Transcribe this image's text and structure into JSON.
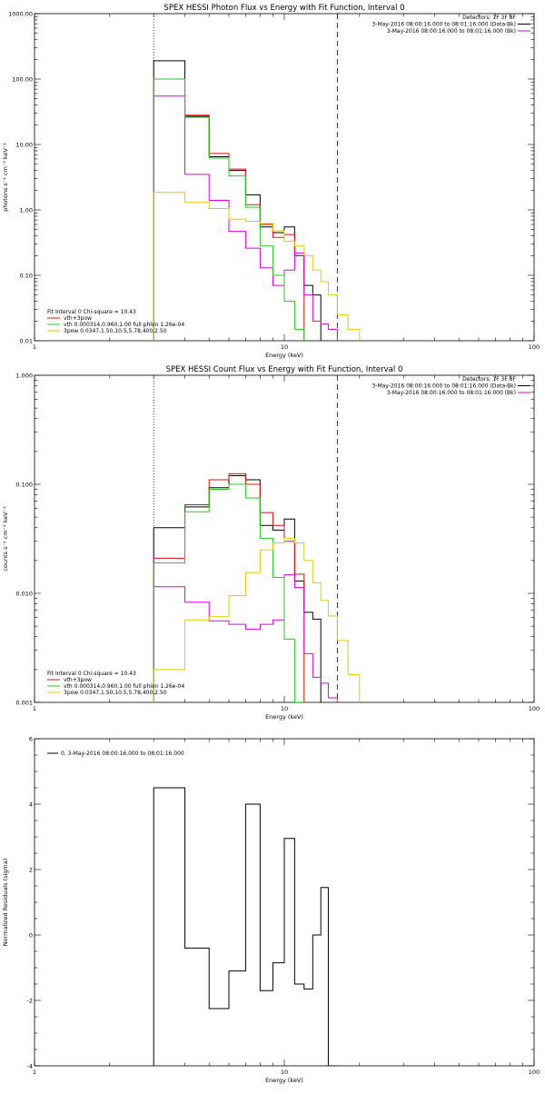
{
  "chart_data": [
    {
      "type": "line",
      "title": "SPEX HESSI Photon Flux vs Energy with Fit Function, Interval 0",
      "xlabel": "Energy (keV)",
      "ylabel": "photons s⁻¹ cm⁻² keV⁻¹",
      "xscale": "log",
      "yscale": "log",
      "xlim": [
        1,
        100
      ],
      "ylim": [
        0.01,
        1000
      ],
      "xticks": [
        {
          "v": 1,
          "label": "1"
        },
        {
          "v": 10,
          "label": "10"
        },
        {
          "v": 100,
          "label": "100"
        }
      ],
      "yticks": [
        {
          "v": 0.01,
          "label": "0.01"
        },
        {
          "v": 0.1,
          "label": "0.10"
        },
        {
          "v": 1,
          "label": "1.00"
        },
        {
          "v": 10,
          "label": "10.00"
        },
        {
          "v": 100,
          "label": "100.00"
        },
        {
          "v": 1000,
          "label": "1000.00"
        }
      ],
      "vlines": [
        {
          "x": 3.0,
          "style": "dotted"
        },
        {
          "x": 16.3,
          "style": "dashed"
        }
      ],
      "legend_right": [
        {
          "text": "Detectors: 1F 3F 8F",
          "color": "",
          "line": false
        },
        {
          "text": "3-May-2016 08:00:16.000 to 08:01:16.000 (Data-Bk)",
          "color": "#000000",
          "line": true
        },
        {
          "text": "3-May-2016 08:00:16.000 to 08:01:16.000 (Bk)",
          "color": "#e000e0",
          "line": true
        }
      ],
      "legend_left": [
        {
          "text": "Fit Interval 0   Chi-square = 10.43",
          "color": "",
          "line": false
        },
        {
          "text": "vth+3pow",
          "color": "#e01010",
          "line": true
        },
        {
          "text": "vth 0.000314,0.960,1.00  full phlon 1.26e-04",
          "color": "#22cc22",
          "line": true
        },
        {
          "text": "3pow 0.0347,1.50,10.5,5.78,400,2.50",
          "color": "#e8c800",
          "line": true
        }
      ],
      "edges": [
        3.0,
        4.0,
        5.0,
        6.0,
        7.0,
        8.0,
        9.0,
        10.0,
        11.0,
        12.0,
        13.0,
        14.0,
        15.0,
        16.3,
        18.0,
        20.0
      ],
      "series": [
        {
          "color": "#000000",
          "values": [
            190,
            27,
            6.5,
            4.0,
            1.7,
            0.55,
            0.45,
            0.55,
            0.2,
            0.07,
            0.05
          ]
        },
        {
          "color": "#e01010",
          "values": [
            100,
            28,
            7.3,
            4.2,
            1.2,
            0.6,
            0.38,
            0.42,
            0.2
          ]
        },
        {
          "color": "#e000e0",
          "values": [
            55,
            3.5,
            1.4,
            0.47,
            0.26,
            0.13,
            0.07,
            0.12,
            0.22,
            0.05,
            0.02,
            0.018,
            0.015
          ]
        },
        {
          "color": "#22cc22",
          "values": [
            100,
            26,
            6.2,
            3.3,
            1.1,
            0.28,
            0.1,
            0.04,
            0.015
          ]
        },
        {
          "color": "#e8c800",
          "values": [
            1.85,
            1.3,
            1.05,
            0.72,
            0.67,
            0.62,
            0.48,
            0.33,
            0.28,
            0.2,
            0.12,
            0.08,
            0.05,
            0.025,
            0.015
          ]
        }
      ]
    },
    {
      "type": "line",
      "title": "SPEX HESSI Count Flux vs Energy with Fit Function, Interval 0",
      "xlabel": "Energy (keV)",
      "ylabel": "counts s⁻¹ cm⁻² keV⁻¹",
      "xscale": "log",
      "yscale": "log",
      "xlim": [
        1,
        100
      ],
      "ylim": [
        0.001,
        1
      ],
      "xticks": [
        {
          "v": 1,
          "label": "1"
        },
        {
          "v": 10,
          "label": "10"
        },
        {
          "v": 100,
          "label": "100"
        }
      ],
      "yticks": [
        {
          "v": 0.001,
          "label": "0.001"
        },
        {
          "v": 0.01,
          "label": "0.010"
        },
        {
          "v": 0.1,
          "label": "0.100"
        },
        {
          "v": 1,
          "label": "1.000"
        }
      ],
      "vlines": [
        {
          "x": 3.0,
          "style": "dotted"
        },
        {
          "x": 16.3,
          "style": "dashed"
        }
      ],
      "legend_right": [
        {
          "text": "Detectors: 1F 3F 8F",
          "color": "",
          "line": false
        },
        {
          "text": "3-May-2016 08:00:16.000 to 08:01:16.000 (Data-Bk)",
          "color": "#000000",
          "line": true
        },
        {
          "text": "3-May-2016 08:00:16.000 to 08:01:16.000 (Bk)",
          "color": "#e000e0",
          "line": true
        }
      ],
      "legend_left": [
        {
          "text": "Fit Interval 0   Chi-square = 10.43",
          "color": "",
          "line": false
        },
        {
          "text": "vth+3pow",
          "color": "#e01010",
          "line": true
        },
        {
          "text": "vth 0.000314,0.960,1.00  full phlon 1.26e-04",
          "color": "#22cc22",
          "line": true
        },
        {
          "text": "3pow 0.0347,1.50,10.5,5.78,400,2.50",
          "color": "#e8c800",
          "line": true
        }
      ],
      "edges": [
        3.0,
        4.0,
        5.0,
        6.0,
        7.0,
        8.0,
        9.0,
        10.0,
        11.0,
        12.0,
        13.0,
        14.0,
        15.0,
        16.3,
        18.0,
        20.0
      ],
      "series": [
        {
          "color": "#000000",
          "values": [
            0.04,
            0.062,
            0.093,
            0.12,
            0.11,
            0.042,
            0.038,
            0.048,
            0.013,
            0.0067,
            0.0058
          ]
        },
        {
          "color": "#e01010",
          "values": [
            0.021,
            0.065,
            0.11,
            0.125,
            0.1,
            0.055,
            0.042,
            0.03,
            0.015
          ]
        },
        {
          "color": "#e000e0",
          "values": [
            0.0115,
            0.0083,
            0.0056,
            0.0052,
            0.0047,
            0.0052,
            0.0057,
            0.0148,
            0.0113,
            0.0028,
            0.0017,
            0.0015,
            0.0011
          ]
        },
        {
          "color": "#22cc22",
          "values": [
            0.019,
            0.056,
            0.09,
            0.1,
            0.075,
            0.032,
            0.014,
            0.0038,
            0.001
          ]
        },
        {
          "color": "#e8c800",
          "values": [
            0.002,
            0.0057,
            0.0061,
            0.0095,
            0.0155,
            0.025,
            0.029,
            0.032,
            0.029,
            0.02,
            0.0125,
            0.0086,
            0.0062,
            0.0037,
            0.0018
          ]
        }
      ]
    },
    {
      "type": "line",
      "title": "",
      "xlabel": "Energy (keV)",
      "ylabel": "Normalized Residuals (sigma)",
      "xscale": "log",
      "yscale": "linear",
      "xlim": [
        1,
        100
      ],
      "ylim": [
        -4,
        6
      ],
      "xticks": [
        {
          "v": 1,
          "label": "1"
        },
        {
          "v": 10,
          "label": "10"
        },
        {
          "v": 100,
          "label": "100"
        }
      ],
      "yticks": [
        {
          "v": -4,
          "label": "-4"
        },
        {
          "v": -2,
          "label": "-2"
        },
        {
          "v": 0,
          "label": "0"
        },
        {
          "v": 2,
          "label": "2"
        },
        {
          "v": 4,
          "label": "4"
        },
        {
          "v": 6,
          "label": "6"
        }
      ],
      "vlines": [],
      "legend_right": [],
      "legend_left_top": [
        {
          "text": "0,  3-May-2016 08:00:16.000 to 08:01:16.000",
          "color": "#000000",
          "line": true
        }
      ],
      "edges": [
        3.0,
        4.0,
        5.0,
        6.0,
        7.0,
        8.0,
        9.0,
        10.0,
        11.0,
        12.0,
        13.0,
        14.0,
        15.0,
        16.3
      ],
      "series": [
        {
          "color": "#000000",
          "values": [
            4.5,
            -0.4,
            -2.25,
            -1.1,
            4.0,
            -1.7,
            -0.85,
            2.95,
            -1.5,
            -1.65,
            0.0,
            1.45,
            -4.0
          ]
        }
      ]
    }
  ]
}
